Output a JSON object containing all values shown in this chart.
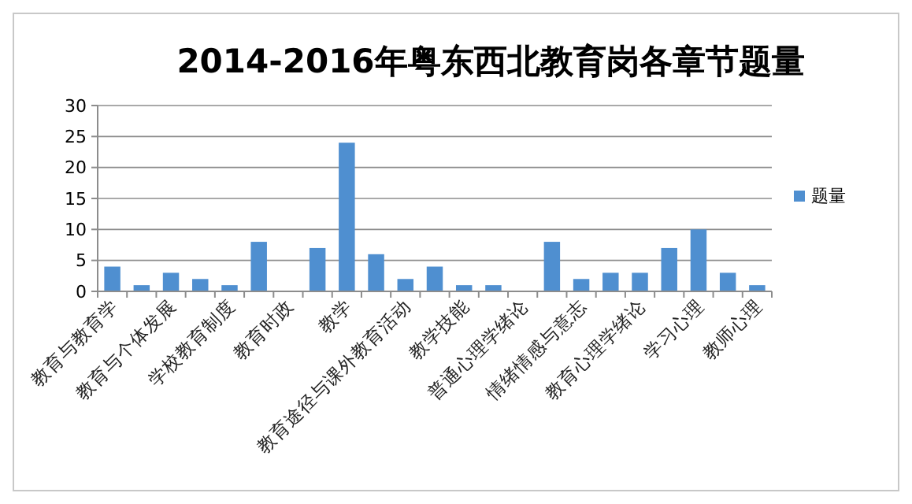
{
  "chart_data": {
    "type": "bar",
    "title": "2014-2016年粤东西北教育岗各章节题量",
    "categories": [
      "教育与教育学",
      null,
      "教育与个体发展",
      null,
      "学校教育制度",
      null,
      "教育时政",
      null,
      "教学",
      null,
      "教育途径与课外教育活动",
      null,
      "教学技能",
      null,
      "普通心理学绪论",
      null,
      "情绪情感与意志",
      null,
      "教育心理学绪论",
      null,
      "学习心理",
      null,
      "教师心理"
    ],
    "series": [
      {
        "name": "题量",
        "color": "#4f8fd0",
        "values": [
          4,
          1,
          3,
          2,
          1,
          8,
          0,
          7,
          24,
          6,
          2,
          4,
          1,
          1,
          0,
          8,
          2,
          3,
          3,
          7,
          10,
          3,
          1
        ]
      }
    ],
    "ylim": [
      0,
      30
    ],
    "yticks": [
      0,
      5,
      10,
      15,
      20,
      25,
      30
    ],
    "grid": "y",
    "legend": "right"
  }
}
